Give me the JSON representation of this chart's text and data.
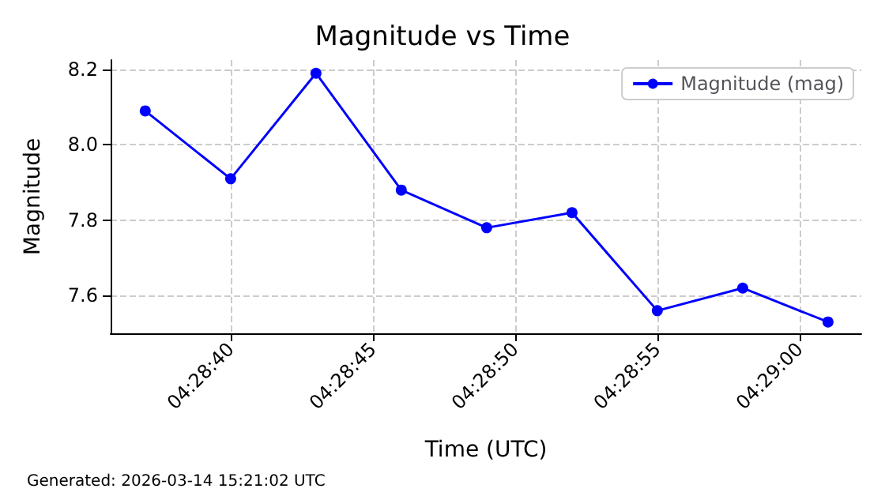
{
  "chart_data": {
    "type": "line",
    "title": "Magnitude vs Time",
    "xlabel": "Time (UTC)",
    "ylabel": "Magnitude",
    "x": [
      4.476944,
      4.477778,
      4.478611,
      4.479444,
      4.480278,
      4.481111,
      4.481944,
      4.482778,
      4.483611
    ],
    "series": [
      {
        "name": "Magnitude (mag)",
        "color": "#0000ff",
        "values": [
          8.09,
          7.91,
          8.19,
          7.88,
          7.78,
          7.82,
          7.56,
          7.62,
          7.53
        ]
      }
    ],
    "xlim": [
      4.476606,
      4.483936
    ],
    "xticks": [
      {
        "value": 4.477778,
        "label": "04:28:40"
      },
      {
        "value": 4.479167,
        "label": "04:28:45"
      },
      {
        "value": 4.480556,
        "label": "04:28:50"
      },
      {
        "value": 4.481944,
        "label": "04:28:55"
      },
      {
        "value": 4.483333,
        "label": "04:29:00"
      }
    ],
    "ylim": [
      7.5,
      8.225
    ],
    "yticks": [
      7.6,
      7.8,
      {
        "value": 8.0,
        "label": "8.0"
      },
      8.2
    ],
    "grid": true,
    "legend": "top right",
    "marker": "circle",
    "line_style": "solid",
    "annotations": [
      "Generated: 2026-03-14 15:21:02 UTC"
    ]
  }
}
